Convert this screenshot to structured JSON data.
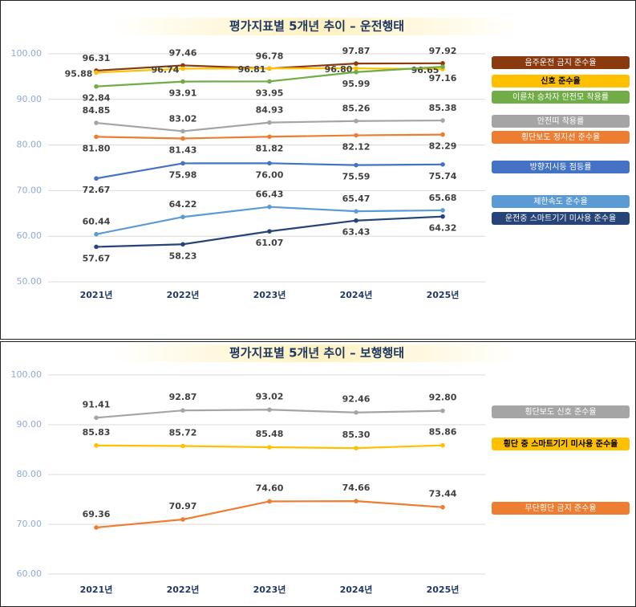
{
  "chart_data": [
    {
      "type": "line",
      "title": "평가지표별 5개년 추이 – 운전행태",
      "categories": [
        "2021년",
        "2022년",
        "2023년",
        "2024년",
        "2025년"
      ],
      "ylim": [
        50,
        100
      ],
      "yticks": [
        {
          "value": 50,
          "label": "50.00"
        },
        {
          "value": 60,
          "label": "60.00"
        },
        {
          "value": 70,
          "label": "70.00"
        },
        {
          "value": 80,
          "label": "80.00"
        },
        {
          "value": 90,
          "label": "90.00"
        },
        {
          "value": 100,
          "label": "100.00"
        }
      ],
      "grid": true,
      "series": [
        {
          "name": "음주운전 금지 준수율",
          "color": "#8B3A0F",
          "values": [
            96.31,
            97.46,
            96.78,
            97.87,
            97.92
          ],
          "value_labels": [
            "96.31",
            "97.46",
            "96.78",
            "97.87",
            "97.92"
          ]
        },
        {
          "name": "신호 준수율",
          "color": "#FFC000",
          "values": [
            95.88,
            96.74,
            96.81,
            96.8,
            96.65
          ],
          "value_labels": [
            "95.88",
            "96.74",
            "96.81",
            "96.80",
            "96.65"
          ]
        },
        {
          "name": "이륜차 승차자 안전모 착용률",
          "color": "#70AD47",
          "values": [
            92.84,
            93.91,
            93.95,
            95.99,
            97.16
          ],
          "value_labels": [
            "92.84",
            "93.91",
            "93.95",
            "95.99",
            "97.16"
          ]
        },
        {
          "name": "안전띠 착용률",
          "color": "#A5A5A5",
          "values": [
            84.85,
            83.02,
            84.93,
            85.26,
            85.38
          ],
          "value_labels": [
            "84.85",
            "83.02",
            "84.93",
            "85.26",
            "85.38"
          ]
        },
        {
          "name": "횡단보도 정지선 준수율",
          "color": "#ED7D31",
          "values": [
            81.8,
            81.43,
            81.82,
            82.12,
            82.29
          ],
          "value_labels": [
            "81.80",
            "81.43",
            "81.82",
            "82.12",
            "82.29"
          ]
        },
        {
          "name": "방향지시등 점등률",
          "color": "#4472C4",
          "values": [
            72.67,
            75.98,
            76,
            75.59,
            75.74
          ],
          "value_labels": [
            "72.67",
            "75.98",
            "76.00",
            "75.59",
            "75.74"
          ]
        },
        {
          "name": "제한속도 준수율",
          "color": "#5B9BD5",
          "values": [
            60.44,
            64.22,
            66.43,
            65.47,
            65.68
          ],
          "value_labels": [
            "60.44",
            "64.22",
            "66.43",
            "65.47",
            "65.68"
          ]
        },
        {
          "name": "운전중 스마트기기 미사용 준수율",
          "color": "#264478",
          "values": [
            57.67,
            58.23,
            61.07,
            63.43,
            64.32
          ],
          "value_labels": [
            "57.67",
            "58.23",
            "61.07",
            "63.43",
            "64.32"
          ]
        }
      ]
    },
    {
      "type": "line",
      "title": "평가지표별 5개년 추이 – 보행행태",
      "categories": [
        "2021년",
        "2022년",
        "2023년",
        "2024년",
        "2025년"
      ],
      "ylim": [
        60,
        100
      ],
      "yticks": [
        {
          "value": 60,
          "label": "60.00"
        },
        {
          "value": 70,
          "label": "70.00"
        },
        {
          "value": 80,
          "label": "80.00"
        },
        {
          "value": 90,
          "label": "90.00"
        },
        {
          "value": 100,
          "label": "100.00"
        }
      ],
      "grid": true,
      "series": [
        {
          "name": "횡단보도 신호 준수율",
          "color": "#A5A5A5",
          "values": [
            91.41,
            92.87,
            93.02,
            92.46,
            92.8
          ],
          "value_labels": [
            "91.41",
            "92.87",
            "93.02",
            "92.46",
            "92.80"
          ]
        },
        {
          "name": "횡단 중 스마트기기 미사용 준수율",
          "color": "#FFC000",
          "values": [
            85.83,
            85.72,
            85.48,
            85.3,
            85.86
          ],
          "value_labels": [
            "85.83",
            "85.72",
            "85.48",
            "85.30",
            "85.86"
          ]
        },
        {
          "name": "무단횡단 금지 준수율",
          "color": "#ED7D31",
          "values": [
            69.36,
            70.97,
            74.6,
            74.66,
            73.44
          ],
          "value_labels": [
            "69.36",
            "70.97",
            "74.60",
            "74.66",
            "73.44"
          ]
        }
      ]
    }
  ]
}
